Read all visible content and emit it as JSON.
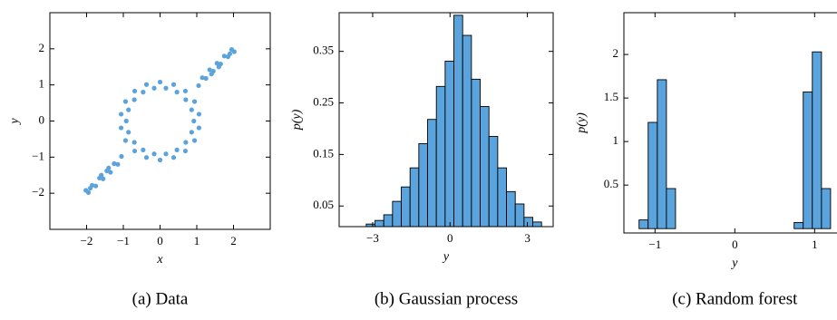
{
  "chart_data": [
    {
      "type": "scatter",
      "caption": "(a) Data",
      "xlabel": "x",
      "ylabel": "y",
      "color": "#5ba3dc",
      "xlim": [
        -3,
        3
      ],
      "ylim": [
        -3,
        3
      ],
      "xticks": [
        {
          "value": -2,
          "label": "−2"
        },
        {
          "value": -1,
          "label": "−1"
        },
        0,
        1,
        2
      ],
      "yticks": [
        {
          "value": -2,
          "label": "−2"
        },
        {
          "value": -1,
          "label": "−1"
        },
        0,
        1,
        2
      ],
      "x": [
        0.92,
        1.06,
        0.86,
        0.94,
        0.7,
        0.69,
        0.46,
        0.37,
        0.16,
        0,
        -0.16,
        -0.37,
        -0.46,
        -0.69,
        -0.7,
        -0.94,
        -0.86,
        -1.06,
        -0.92,
        -1.06,
        -0.86,
        -0.94,
        -0.7,
        -0.69,
        -0.46,
        -0.37,
        -0.16,
        0,
        0.16,
        0.37,
        0.46,
        0.69,
        0.7,
        0.94,
        0.86,
        1.06,
        1.05,
        1.15,
        1.25,
        1.35,
        1.45,
        1.55,
        1.65,
        1.75,
        1.85,
        1.95,
        2.02,
        1.4,
        1.6,
        1.9,
        -1.05,
        -1.15,
        -1.25,
        -1.35,
        -1.45,
        -1.55,
        -1.65,
        -1.75,
        -1.85,
        -1.95,
        -2.02,
        -1.4,
        -1.6,
        -1.9
      ],
      "y": [
        0,
        0.19,
        0.31,
        0.54,
        0.59,
        0.83,
        0.8,
        1.01,
        0.91,
        1.08,
        0.91,
        1.01,
        0.8,
        0.83,
        0.59,
        0.54,
        0.31,
        0.19,
        0,
        -0.19,
        -0.31,
        -0.54,
        -0.59,
        -0.83,
        -0.8,
        -1.01,
        -0.91,
        -1.08,
        -0.91,
        -1.01,
        -0.8,
        -0.83,
        -0.59,
        -0.54,
        -0.31,
        -0.19,
        0.98,
        1.2,
        1.18,
        1.42,
        1.38,
        1.6,
        1.58,
        1.8,
        1.78,
        1.98,
        1.92,
        1.3,
        1.5,
        1.86,
        -0.98,
        -1.2,
        -1.18,
        -1.42,
        -1.38,
        -1.6,
        -1.58,
        -1.8,
        -1.78,
        -1.98,
        -1.92,
        -1.3,
        -1.5,
        -1.86
      ]
    },
    {
      "type": "histogram",
      "caption": "(b) Gaussian process",
      "xlabel": "y",
      "ylabel": "p(y)",
      "color": "#5ba3dc",
      "xlim": [
        -4.3,
        4.0
      ],
      "ylim": [
        0.01,
        0.425
      ],
      "xticks": [
        {
          "value": -3,
          "label": "−3"
        },
        0,
        3
      ],
      "yticks": [
        0.05,
        0.15,
        0.25,
        0.35
      ],
      "bins": [
        -3.25,
        -2.91,
        -2.57,
        -2.23,
        -1.89,
        -1.55,
        -1.21,
        -0.87,
        -0.53,
        -0.19,
        0.15,
        0.49,
        0.83,
        1.17,
        1.51,
        1.85,
        2.19,
        2.53,
        2.87,
        3.21,
        3.55
      ],
      "values": [
        0.015,
        0.022,
        0.033,
        0.059,
        0.087,
        0.124,
        0.171,
        0.218,
        0.282,
        0.331,
        0.42,
        0.381,
        0.296,
        0.243,
        0.185,
        0.124,
        0.078,
        0.054,
        0.028,
        0.019
      ]
    },
    {
      "type": "histogram",
      "caption": "(c) Random forest",
      "xlabel": "y",
      "ylabel": "p(y)",
      "color": "#5ba3dc",
      "xlim": [
        -1.39,
        1.36
      ],
      "ylim": [
        -0.05,
        2.48
      ],
      "xticks": [
        {
          "value": -1,
          "label": "−1"
        },
        0,
        1
      ],
      "yticks": [
        0.5,
        1.0,
        1.5,
        2.0
      ],
      "bins": [
        -1.2,
        -1.086,
        -0.971,
        -0.857,
        -0.743,
        -0.629,
        -0.514,
        -0.4,
        -0.286,
        -0.171,
        -0.057,
        0.057,
        0.171,
        0.286,
        0.4,
        0.514,
        0.629,
        0.743,
        0.857,
        0.971,
        1.086,
        1.2
      ],
      "values": [
        0.1,
        1.22,
        1.71,
        0.46,
        0,
        0,
        0,
        0,
        0,
        0,
        0,
        0,
        0,
        0,
        0,
        0,
        0,
        0.07,
        1.57,
        2.03,
        0.46
      ]
    }
  ]
}
